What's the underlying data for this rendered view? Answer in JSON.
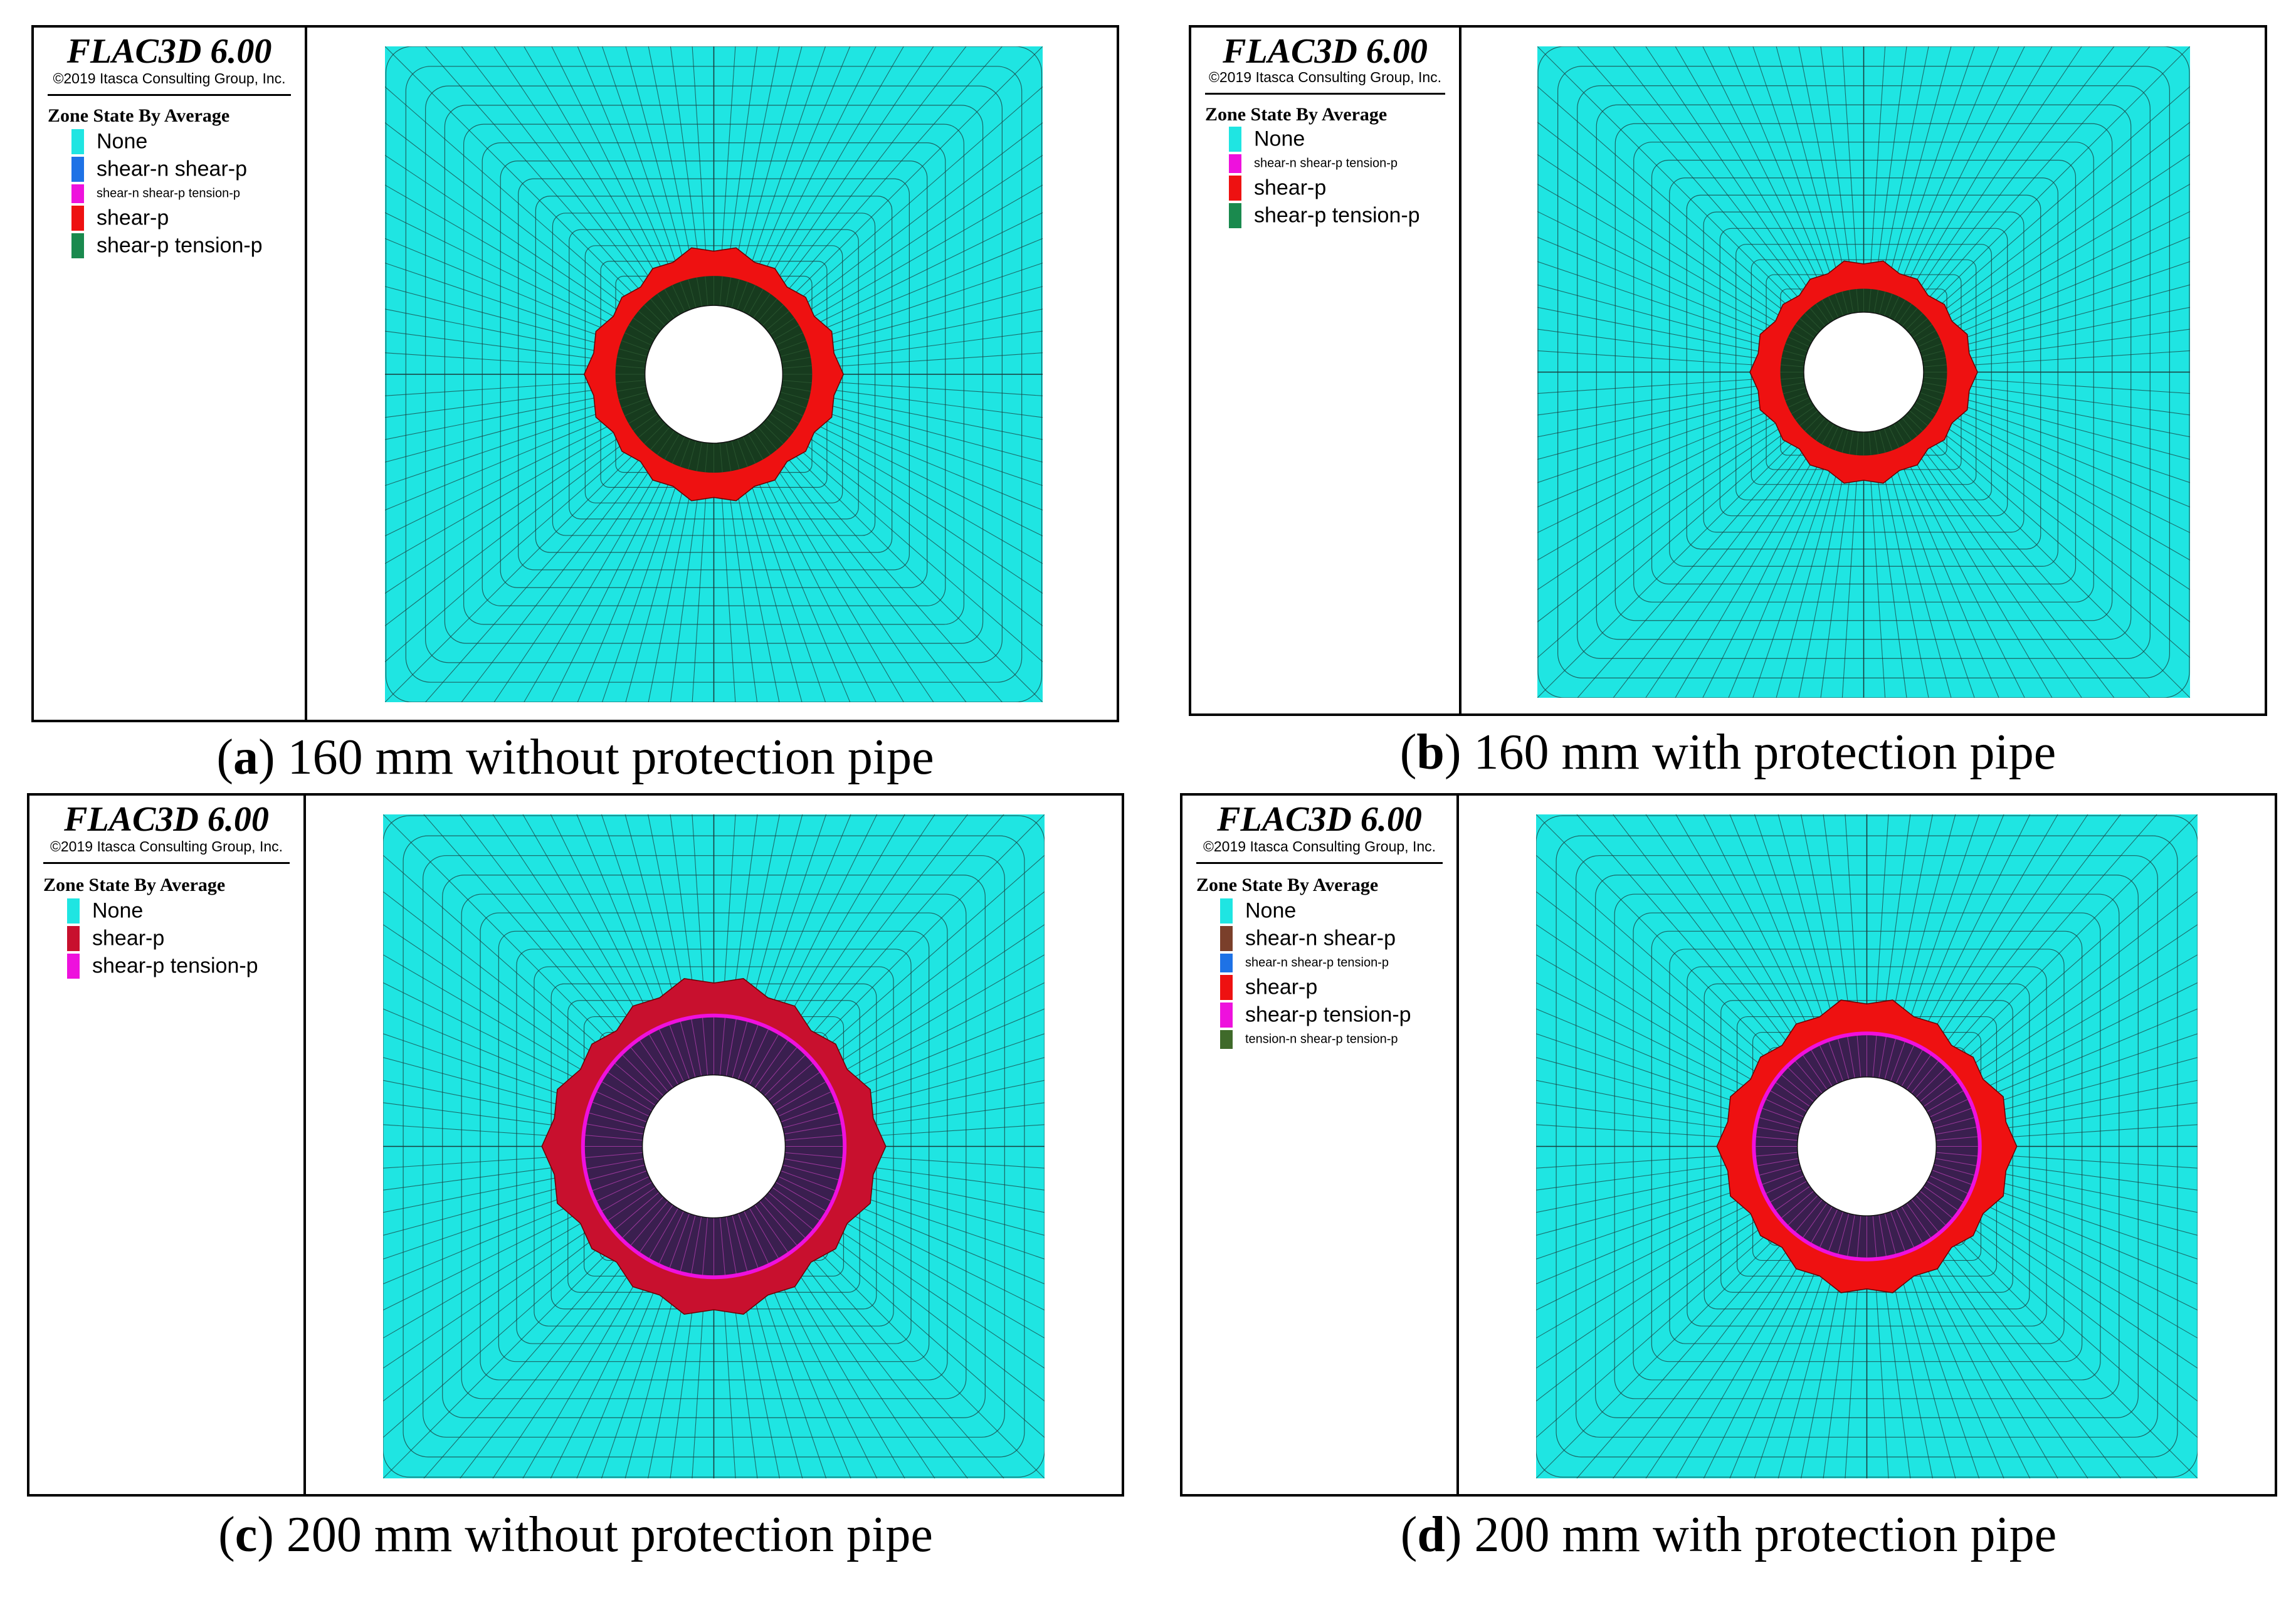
{
  "colors": {
    "none": "#1fe5e2",
    "mesh_line": "#1a3a3a",
    "red": "#ee1111",
    "dark_red": "#c8102e",
    "dark_green": "#173b1e",
    "dark_purple": "#3a1f4f",
    "magenta": "#ee11dd",
    "blue": "#1e72e6",
    "green": "#1a8a4e",
    "brown": "#7a3f2a",
    "olive_green": "#3f6a2a"
  },
  "panels": [
    {
      "id": "a",
      "software": "FLAC3D 6.00",
      "copyright": "©2019 Itasca Consulting Group, Inc.",
      "legend_title": "Zone State By Average",
      "legend": [
        {
          "label": "None",
          "color": "#1fe5e2",
          "size": "big"
        },
        {
          "label": "shear-n shear-p",
          "color": "#1e72e6",
          "size": "big"
        },
        {
          "label": "shear-n shear-p tension-p",
          "color": "#ee11dd",
          "size": "small"
        },
        {
          "label": "shear-p",
          "color": "#ee1111",
          "size": "big"
        },
        {
          "label": "shear-p tension-p",
          "color": "#1a8a4e",
          "size": "big"
        }
      ],
      "caption_letter": "a",
      "caption_text": "160 mm without protection pipe"
    },
    {
      "id": "b",
      "software": "FLAC3D 6.00",
      "copyright": "©2019 Itasca Consulting Group, Inc.",
      "legend_title": "Zone State By Average",
      "legend": [
        {
          "label": "None",
          "color": "#1fe5e2",
          "size": "big"
        },
        {
          "label": "shear-n shear-p tension-p",
          "color": "#ee11dd",
          "size": "small"
        },
        {
          "label": "shear-p",
          "color": "#ee1111",
          "size": "big"
        },
        {
          "label": "shear-p tension-p",
          "color": "#1a8a4e",
          "size": "big"
        }
      ],
      "caption_letter": "b",
      "caption_text": "160 mm with protection pipe"
    },
    {
      "id": "c",
      "software": "FLAC3D 6.00",
      "copyright": "©2019 Itasca Consulting Group, Inc.",
      "legend_title": "Zone State By Average",
      "legend": [
        {
          "label": "None",
          "color": "#1fe5e2",
          "size": "big"
        },
        {
          "label": "shear-p",
          "color": "#c8102e",
          "size": "big"
        },
        {
          "label": "shear-p tension-p",
          "color": "#ee11dd",
          "size": "big"
        }
      ],
      "caption_letter": "c",
      "caption_text": "200 mm without protection pipe"
    },
    {
      "id": "d",
      "software": "FLAC3D 6.00",
      "copyright": "©2019 Itasca Consulting Group, Inc.",
      "legend_title": "Zone State By Average",
      "legend": [
        {
          "label": "None",
          "color": "#1fe5e2",
          "size": "big"
        },
        {
          "label": "shear-n shear-p",
          "color": "#7a3f2a",
          "size": "big"
        },
        {
          "label": "shear-n shear-p tension-p",
          "color": "#1e72e6",
          "size": "small"
        },
        {
          "label": "shear-p",
          "color": "#ee1111",
          "size": "big"
        },
        {
          "label": "shear-p tension-p",
          "color": "#ee11dd",
          "size": "big"
        },
        {
          "label": "tension-n shear-p tension-p",
          "color": "#3f6a2a",
          "size": "small"
        }
      ],
      "caption_letter": "d",
      "caption_text": "200 mm with protection pipe"
    }
  ]
}
